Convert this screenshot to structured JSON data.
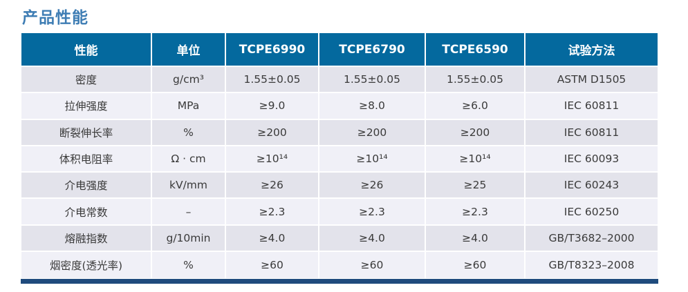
{
  "page_title": "产品性能",
  "colors": {
    "title": "#3e7db4",
    "header_bg": "#04699e",
    "header_text": "#ffffff",
    "row_odd_bg": "#e3e3eb",
    "row_even_bg": "#f0f0f7",
    "body_text": "#3a3a3a",
    "bottom_bar": "#1f4b7d"
  },
  "table": {
    "headers": [
      "性能",
      "单位",
      "TCPE6990",
      "TCPE6790",
      "TCPE6590",
      "试验方法"
    ],
    "rows": [
      [
        "密度",
        "g/cm³",
        "1.55±0.05",
        "1.55±0.05",
        "1.55±0.05",
        "ASTM D1505"
      ],
      [
        "拉伸强度",
        "MPa",
        "≥9.0",
        "≥8.0",
        "≥6.0",
        "IEC 60811"
      ],
      [
        "断裂伸长率",
        "%",
        "≥200",
        "≥200",
        "≥200",
        "IEC 60811"
      ],
      [
        "体积电阻率",
        "Ω · cm",
        "≥10¹⁴",
        "≥10¹⁴",
        "≥10¹⁴",
        "IEC 60093"
      ],
      [
        "介电强度",
        "kV/mm",
        "≥26",
        "≥26",
        "≥25",
        "IEC 60243"
      ],
      [
        "介电常数",
        "–",
        "≥2.3",
        "≥2.3",
        "≥2.3",
        "IEC 60250"
      ],
      [
        "熔融指数",
        "g/10min",
        "≥4.0",
        "≥4.0",
        "≥4.0",
        "GB/T3682–2000"
      ],
      [
        "烟密度(透光率)",
        "%",
        "≥60",
        "≥60",
        "≥60",
        "GB/T8323–2008"
      ]
    ]
  }
}
